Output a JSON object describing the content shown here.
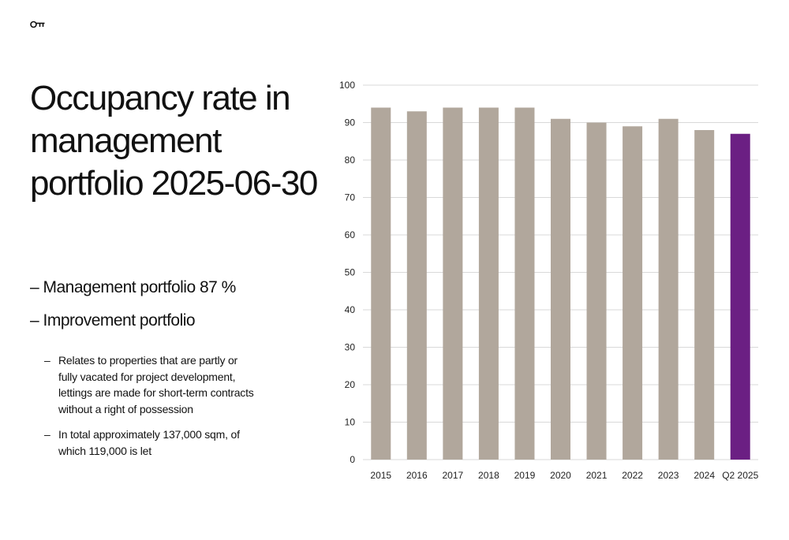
{
  "logo": {
    "icon": "key-icon"
  },
  "slide": {
    "title_lines": [
      "Occupancy rate in",
      "management",
      "portfolio 2025-06-30"
    ],
    "bullets": [
      "– Management portfolio 87 %",
      "– Improvement portfolio"
    ],
    "sub_bullets": [
      {
        "dash": "–",
        "lines": [
          "Relates to properties that are partly or",
          "fully vacated for project development,",
          "lettings are made for short-term contracts",
          "without a right of possession"
        ]
      },
      {
        "dash": "–",
        "lines": [
          "In total approximately 137,000 sqm, of",
          "which 119,000 is let"
        ]
      }
    ]
  },
  "chart_data": {
    "type": "bar",
    "title": "",
    "xlabel": "",
    "ylabel": "",
    "ylim": [
      0,
      100
    ],
    "yticks": [
      0,
      10,
      20,
      30,
      40,
      50,
      60,
      70,
      80,
      90,
      100
    ],
    "grid": true,
    "categories": [
      "2015",
      "2016",
      "2017",
      "2018",
      "2019",
      "2020",
      "2021",
      "2022",
      "2023",
      "2024",
      "Q2 2025"
    ],
    "values": [
      94,
      93,
      94,
      94,
      94,
      91,
      90,
      89,
      91,
      88,
      87
    ],
    "colors": {
      "default": "#b1a79c",
      "highlight": "#6b1f83",
      "grid": "#d9d9d9"
    },
    "highlight_index": 10
  }
}
